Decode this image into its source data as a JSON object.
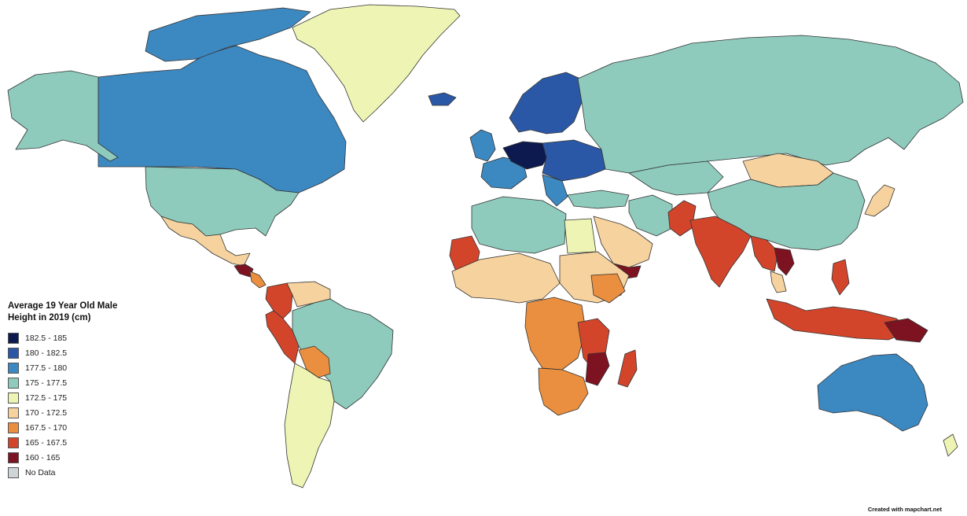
{
  "legend": {
    "title": "Average 19 Year Old Male Height in 2019 (cm)",
    "items": [
      {
        "label": "182.5 - 185",
        "color": "#0d1a4f"
      },
      {
        "label": "180 - 182.5",
        "color": "#2b58a6"
      },
      {
        "label": "177.5 - 180",
        "color": "#3c88c0"
      },
      {
        "label": "175 - 177.5",
        "color": "#8ecbbd"
      },
      {
        "label": "172.5 - 175",
        "color": "#eef5b4"
      },
      {
        "label": "170 - 172.5",
        "color": "#f6d29e"
      },
      {
        "label": "167.5 - 170",
        "color": "#ea8f3f"
      },
      {
        "label": "165 - 167.5",
        "color": "#d2452b"
      },
      {
        "label": "160 - 165",
        "color": "#7d1221"
      },
      {
        "label": "No Data",
        "color": "#cfd4d6"
      }
    ]
  },
  "credit": "Created with mapchart.net"
}
